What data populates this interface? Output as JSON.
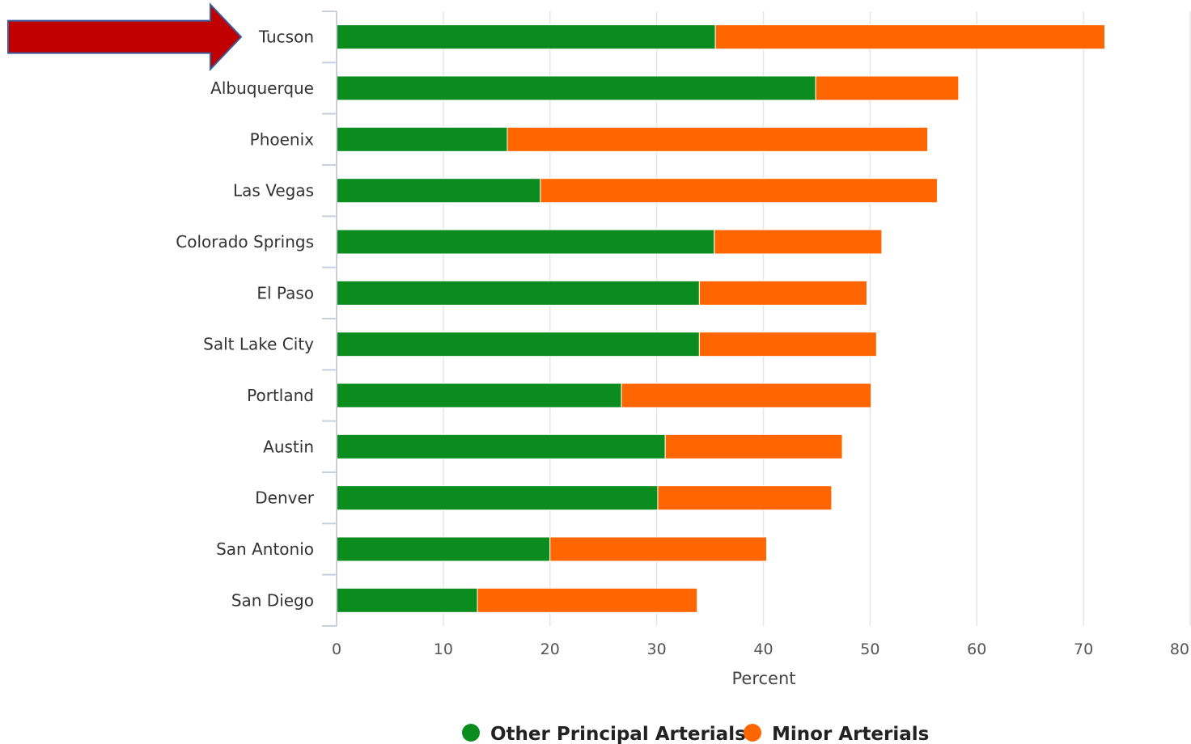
{
  "chart_data": {
    "type": "bar",
    "orientation": "horizontal",
    "stacked": true,
    "categories": [
      "Tucson",
      "Albuquerque",
      "Phoenix",
      "Las Vegas",
      "Colorado Springs",
      "El Paso",
      "Salt Lake City",
      "Portland",
      "Austin",
      "Denver",
      "San Antonio",
      "San Diego"
    ],
    "series": [
      {
        "name": "Other Principal Arterials",
        "color": "#0b8c1e",
        "values": [
          35.5,
          44.9,
          16.0,
          19.1,
          35.4,
          34.0,
          34.0,
          26.7,
          30.8,
          30.1,
          20.0,
          13.2
        ]
      },
      {
        "name": "Minor Arterials",
        "color": "#ff6600",
        "values": [
          36.5,
          13.4,
          39.4,
          37.2,
          15.7,
          15.7,
          16.6,
          23.4,
          16.6,
          16.3,
          20.3,
          20.6
        ]
      }
    ],
    "xlabel": "Percent",
    "ylabel": "",
    "xlim": [
      0,
      80
    ],
    "xticks": [
      0,
      10,
      20,
      30,
      40,
      50,
      60,
      70,
      80
    ],
    "grid": true,
    "legend_position": "bottom-center",
    "highlight": {
      "category": "Tucson",
      "marker": "arrow",
      "color": "#c00000",
      "icon": "arrow-right-icon"
    }
  }
}
